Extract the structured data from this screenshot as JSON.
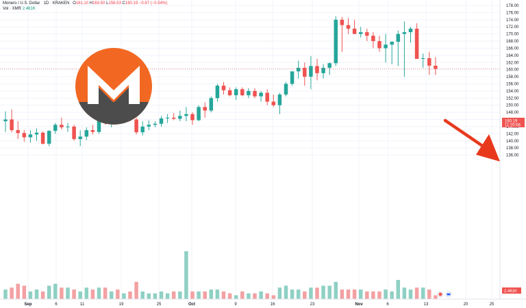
{
  "header": {
    "symbol": "Monero / U.S. Dollar",
    "interval": "1D",
    "exchange": "KRAKEN",
    "o_label": "O",
    "o_val": "161.10",
    "h_label": "H",
    "h_val": "163.50",
    "l_label": "L",
    "l_val": "158.53",
    "c_label": "C",
    "c_val": "160.19",
    "change": "−0.87 (−0.54%)",
    "vol_label": "Vol · XMR",
    "vol_val": "2.461K"
  },
  "colors": {
    "up": "#26a69a",
    "down": "#ef5350",
    "up_vol": "#8fd0c4",
    "down_vol": "#f3a1a3",
    "arrow": "#e8391d"
  },
  "chart_data": {
    "type": "candlestick",
    "ylim": [
      134,
      178
    ],
    "y_ticks": [
      "136.00",
      "138.00",
      "140.00",
      "142.00",
      "144.00",
      "146.00",
      "148.00",
      "150.00",
      "152.00",
      "154.00",
      "156.00",
      "158.00",
      "160.00",
      "162.00",
      "164.00",
      "166.00",
      "168.00",
      "170.00",
      "172.00",
      "174.00",
      "176.00",
      "178.00"
    ],
    "x_labels": [
      "Sep",
      "6",
      "11",
      "19",
      "25",
      "Oct",
      "9",
      "16",
      "23",
      "Nov",
      "6",
      "13",
      "20",
      "25"
    ],
    "last_price": "160.19",
    "countdown": "11:20:56",
    "last_volume": "2.461K",
    "candles": [
      [
        145.5,
        148.3,
        142.5,
        146.0
      ],
      [
        146.0,
        148.8,
        142.4,
        143.0
      ],
      [
        143.0,
        145.5,
        140.5,
        142.2
      ],
      [
        142.2,
        143.0,
        139.8,
        141.0
      ],
      [
        141.0,
        143.0,
        139.5,
        141.8
      ],
      [
        141.8,
        143.5,
        140.0,
        142.3
      ],
      [
        142.3,
        142.6,
        139.0,
        139.2
      ],
      [
        139.2,
        143.0,
        138.5,
        142.8
      ],
      [
        142.8,
        145.0,
        142.0,
        144.5
      ],
      [
        144.5,
        146.5,
        143.2,
        143.8
      ],
      [
        143.8,
        145.0,
        142.5,
        144.0
      ],
      [
        144.0,
        144.5,
        140.0,
        140.5
      ],
      [
        140.5,
        143.0,
        138.5,
        141.2
      ],
      [
        141.2,
        143.8,
        140.2,
        143.0
      ],
      [
        143.0,
        144.5,
        141.8,
        142.5
      ],
      [
        142.5,
        147.2,
        142.0,
        146.6
      ],
      [
        146.6,
        149.0,
        144.5,
        145.0
      ],
      [
        145.0,
        148.0,
        143.8,
        147.5
      ],
      [
        147.5,
        148.5,
        145.0,
        146.0
      ],
      [
        146.0,
        148.5,
        145.5,
        148.0
      ],
      [
        148.0,
        148.2,
        145.5,
        146.0
      ],
      [
        146.0,
        146.5,
        141.8,
        142.4
      ],
      [
        142.4,
        145.5,
        141.5,
        144.0
      ],
      [
        144.0,
        145.8,
        143.0,
        144.5
      ],
      [
        144.5,
        145.5,
        143.8,
        144.8
      ],
      [
        144.8,
        147.0,
        144.0,
        146.3
      ],
      [
        146.3,
        147.5,
        145.0,
        146.5
      ],
      [
        146.5,
        147.8,
        145.8,
        146.2
      ],
      [
        146.2,
        148.5,
        145.5,
        147.0
      ],
      [
        147.0,
        149.5,
        145.5,
        147.5
      ],
      [
        147.5,
        148.0,
        144.5,
        145.8
      ],
      [
        145.8,
        150.0,
        145.5,
        149.5
      ],
      [
        149.5,
        150.8,
        146.5,
        148.5
      ],
      [
        148.5,
        152.5,
        148.0,
        152.0
      ],
      [
        152.0,
        156.0,
        151.0,
        155.5
      ],
      [
        155.5,
        156.5,
        153.0,
        154.2
      ],
      [
        154.2,
        155.0,
        152.5,
        152.8
      ],
      [
        152.8,
        155.0,
        151.5,
        154.5
      ],
      [
        154.5,
        155.0,
        152.5,
        152.8
      ],
      [
        152.8,
        154.8,
        152.0,
        154.0
      ],
      [
        154.0,
        154.8,
        152.0,
        152.5
      ],
      [
        152.5,
        154.0,
        151.0,
        153.5
      ],
      [
        153.5,
        154.5,
        150.0,
        151.0
      ],
      [
        151.0,
        153.0,
        149.5,
        150.0
      ],
      [
        150.0,
        153.5,
        147.5,
        153.0
      ],
      [
        153.0,
        156.5,
        152.5,
        156.0
      ],
      [
        156.0,
        159.5,
        155.5,
        159.5
      ],
      [
        159.5,
        162.5,
        157.5,
        160.5
      ],
      [
        160.5,
        162.0,
        155.5,
        158.0
      ],
      [
        158.0,
        163.8,
        154.5,
        161.0
      ],
      [
        161.0,
        163.0,
        157.0,
        159.0
      ],
      [
        159.0,
        161.5,
        157.5,
        160.5
      ],
      [
        160.5,
        162.0,
        158.5,
        161.8
      ],
      [
        161.8,
        175.0,
        161.0,
        174.0
      ],
      [
        174.0,
        174.8,
        165.0,
        172.5
      ],
      [
        172.5,
        174.5,
        170.0,
        171.5
      ],
      [
        171.5,
        174.0,
        170.0,
        170.0
      ],
      [
        170.0,
        172.0,
        169.0,
        170.5
      ],
      [
        170.5,
        171.5,
        168.0,
        169.5
      ],
      [
        169.5,
        170.5,
        166.0,
        168.0
      ],
      [
        168.0,
        169.5,
        165.0,
        166.0
      ],
      [
        166.0,
        170.0,
        162.0,
        167.0
      ],
      [
        167.0,
        168.0,
        161.5,
        167.8
      ],
      [
        167.8,
        171.0,
        161.0,
        170.0
      ],
      [
        170.0,
        173.5,
        158.0,
        170.5
      ],
      [
        170.5,
        172.0,
        167.5,
        171.5
      ],
      [
        171.5,
        173.0,
        163.0,
        163.0
      ],
      [
        163.0,
        164.5,
        160.5,
        163.2
      ],
      [
        163.2,
        165.0,
        158.5,
        161.1
      ],
      [
        161.1,
        163.5,
        158.5,
        160.2
      ]
    ],
    "volumes": [
      5,
      6,
      8,
      7,
      4,
      5,
      4,
      7,
      8,
      6,
      6,
      5,
      4,
      6,
      5,
      6,
      6,
      4,
      5,
      3,
      4,
      9,
      4,
      3,
      3,
      4,
      3,
      4,
      4,
      25,
      4,
      4,
      4,
      5,
      5,
      4,
      3,
      2,
      4,
      3,
      3,
      4,
      3,
      2,
      6,
      7,
      5,
      5,
      4,
      6,
      6,
      7,
      7,
      9,
      5,
      5,
      5,
      5,
      4,
      4,
      4,
      5,
      4,
      10,
      6,
      5,
      6,
      6,
      5,
      2
    ]
  }
}
